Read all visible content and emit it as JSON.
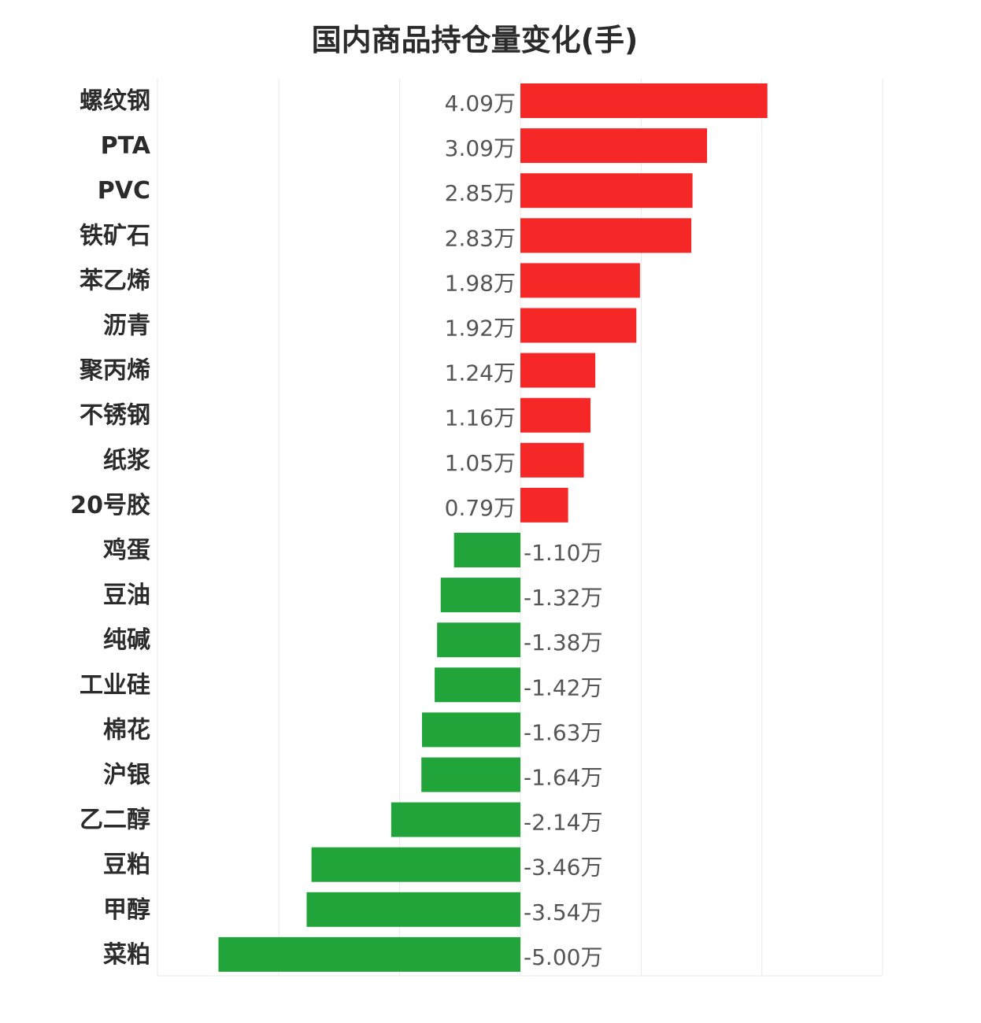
{
  "chart_data": {
    "type": "bar",
    "orientation": "horizontal",
    "title": "国内商品持仓量变化(手)",
    "unit_suffix": "万",
    "categories": [
      "螺纹钢",
      "PTA",
      "PVC",
      "铁矿石",
      "苯乙烯",
      "沥青",
      "聚丙烯",
      "不锈钢",
      "纸浆",
      "20号胶",
      "鸡蛋",
      "豆油",
      "纯碱",
      "工业硅",
      "棉花",
      "沪银",
      "乙二醇",
      "豆粕",
      "甲醇",
      "菜粕"
    ],
    "values": [
      4.09,
      3.09,
      2.85,
      2.83,
      1.98,
      1.92,
      1.24,
      1.16,
      1.05,
      0.79,
      -1.1,
      -1.32,
      -1.38,
      -1.42,
      -1.63,
      -1.64,
      -2.14,
      -3.46,
      -3.54,
      -5.0
    ],
    "value_labels": [
      "4.09万",
      "3.09万",
      "2.85万",
      "2.83万",
      "1.98万",
      "1.92万",
      "1.24万",
      "1.16万",
      "1.05万",
      "0.79万",
      "-1.10万",
      "-1.32万",
      "-1.38万",
      "-1.42万",
      "-1.63万",
      "-1.64万",
      "-2.14万",
      "-3.46万",
      "-3.54万",
      "-5.00万"
    ],
    "xlim": [
      -6,
      6
    ],
    "grid": true,
    "colors": {
      "positive": "#f52727",
      "negative": "#21a43a",
      "grid": "#e8e8e8"
    }
  }
}
